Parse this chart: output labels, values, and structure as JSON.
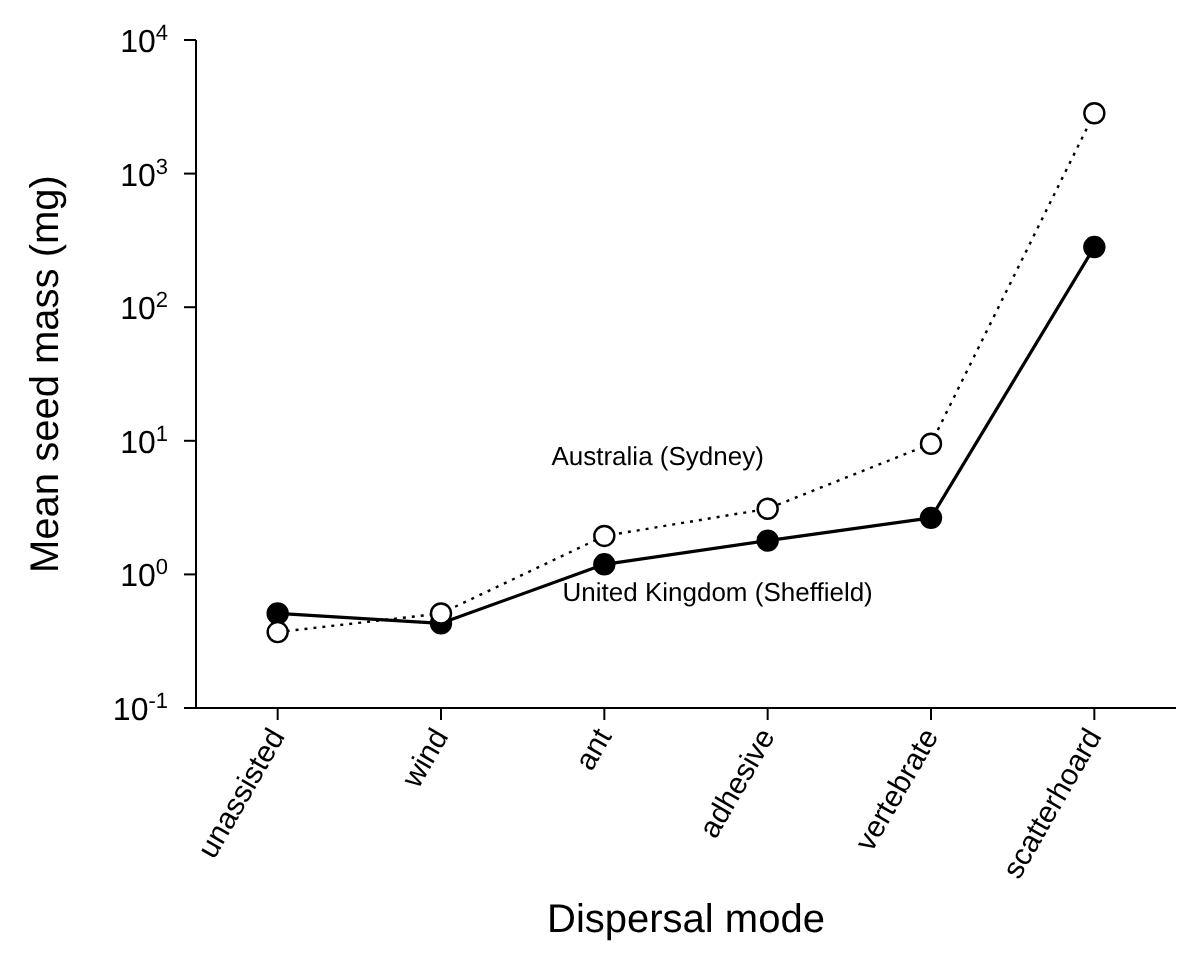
{
  "chart_data": {
    "type": "line",
    "xlabel": "Dispersal mode",
    "ylabel": "Mean seed mass (mg)",
    "categories": [
      "unassisted",
      "wind",
      "ant",
      "adhesive",
      "vertebrate",
      "scatterhoard"
    ],
    "series": [
      {
        "name": "United Kingdom (Sheffield)",
        "color": "#000000",
        "line_style": "solid",
        "values": [
          0.51,
          0.43,
          1.19,
          1.79,
          2.65,
          282
        ]
      },
      {
        "name": "Australia (Sydney)",
        "color": "#000000",
        "line_style": "dotted",
        "values": [
          0.37,
          0.51,
          1.94,
          3.1,
          9.5,
          2830
        ]
      }
    ],
    "log": "y",
    "ylim": [
      0.1,
      10000
    ],
    "yticks": [
      {
        "value": 0.1,
        "label": "10$^{-1}$"
      },
      {
        "value": 1,
        "label": "10$^{0}$"
      },
      {
        "value": 10,
        "label": "10$^{1}$"
      },
      {
        "value": 100,
        "label": "10$^{2}$"
      },
      {
        "value": 1000,
        "label": "10$^{3}$"
      },
      {
        "value": 10000,
        "label": "10$^{4}$"
      }
    ],
    "grid": false,
    "legend": false,
    "marker": "circle"
  }
}
